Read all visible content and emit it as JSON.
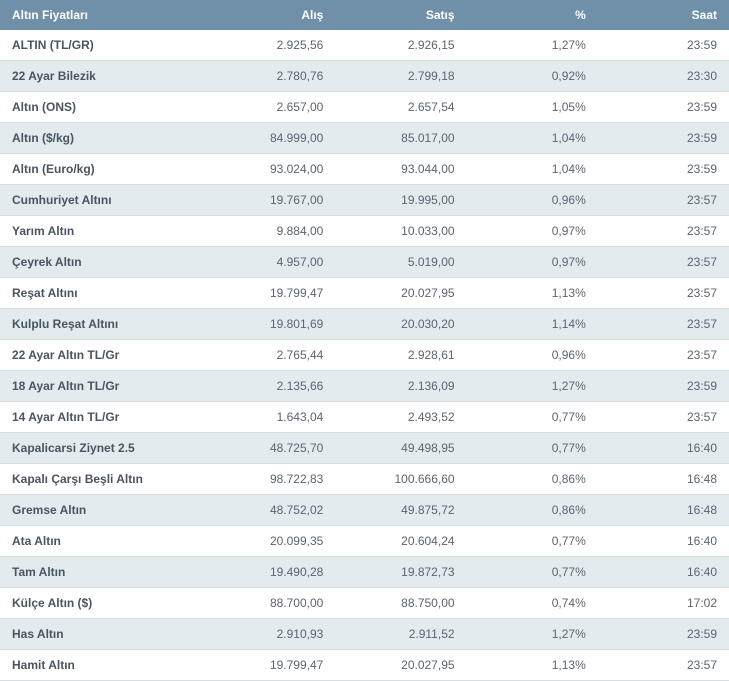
{
  "table": {
    "headers": {
      "name": "Altın Fiyatları",
      "buy": "Alış",
      "sell": "Satış",
      "pct": "%",
      "time": "Saat"
    },
    "rows": [
      {
        "name": "ALTIN (TL/GR)",
        "buy": "2.925,56",
        "sell": "2.926,15",
        "pct": "1,27%",
        "time": "23:59"
      },
      {
        "name": "22 Ayar Bilezik",
        "buy": "2.780,76",
        "sell": "2.799,18",
        "pct": "0,92%",
        "time": "23:30"
      },
      {
        "name": "Altın (ONS)",
        "buy": "2.657,00",
        "sell": "2.657,54",
        "pct": "1,05%",
        "time": "23:59"
      },
      {
        "name": "Altın ($/kg)",
        "buy": "84.999,00",
        "sell": "85.017,00",
        "pct": "1,04%",
        "time": "23:59"
      },
      {
        "name": "Altın (Euro/kg)",
        "buy": "93.024,00",
        "sell": "93.044,00",
        "pct": "1,04%",
        "time": "23:59"
      },
      {
        "name": "Cumhuriyet Altını",
        "buy": "19.767,00",
        "sell": "19.995,00",
        "pct": "0,96%",
        "time": "23:57"
      },
      {
        "name": "Yarım Altın",
        "buy": "9.884,00",
        "sell": "10.033,00",
        "pct": "0,97%",
        "time": "23:57"
      },
      {
        "name": "Çeyrek Altın",
        "buy": "4.957,00",
        "sell": "5.019,00",
        "pct": "0,97%",
        "time": "23:57"
      },
      {
        "name": "Reşat Altını",
        "buy": "19.799,47",
        "sell": "20.027,95",
        "pct": "1,13%",
        "time": "23:57"
      },
      {
        "name": "Kulplu Reşat Altını",
        "buy": "19.801,69",
        "sell": "20.030,20",
        "pct": "1,14%",
        "time": "23:57"
      },
      {
        "name": "22 Ayar Altın TL/Gr",
        "buy": "2.765,44",
        "sell": "2.928,61",
        "pct": "0,96%",
        "time": "23:57"
      },
      {
        "name": "18 Ayar Altın TL/Gr",
        "buy": "2.135,66",
        "sell": "2.136,09",
        "pct": "1,27%",
        "time": "23:59"
      },
      {
        "name": "14 Ayar Altın TL/Gr",
        "buy": "1.643,04",
        "sell": "2.493,52",
        "pct": "0,77%",
        "time": "23:57"
      },
      {
        "name": "Kapalicarsi Ziynet 2.5",
        "buy": "48.725,70",
        "sell": "49.498,95",
        "pct": "0,77%",
        "time": "16:40"
      },
      {
        "name": "Kapalı Çarşı Beşli Altın",
        "buy": "98.722,83",
        "sell": "100.666,60",
        "pct": "0,86%",
        "time": "16:48"
      },
      {
        "name": "Gremse Altın",
        "buy": "48.752,02",
        "sell": "49.875,72",
        "pct": "0,86%",
        "time": "16:48"
      },
      {
        "name": "Ata Altın",
        "buy": "20.099,35",
        "sell": "20.604,24",
        "pct": "0,77%",
        "time": "16:40"
      },
      {
        "name": "Tam Altın",
        "buy": "19.490,28",
        "sell": "19.872,73",
        "pct": "0,77%",
        "time": "16:40"
      },
      {
        "name": "Külçe Altın ($)",
        "buy": "88.700,00",
        "sell": "88.750,00",
        "pct": "0,74%",
        "time": "17:02"
      },
      {
        "name": "Has Altın",
        "buy": "2.910,93",
        "sell": "2.911,52",
        "pct": "1,27%",
        "time": "23:59"
      },
      {
        "name": "Hamit Altın",
        "buy": "19.799,47",
        "sell": "20.027,95",
        "pct": "1,13%",
        "time": "23:57"
      }
    ],
    "styling": {
      "type": "table",
      "header_bg": "#6f90a8",
      "header_text_color": "#ffffff",
      "row_odd_bg": "#ffffff",
      "row_even_bg": "#e3ebef",
      "border_color": "#d8dde0",
      "text_color": "#5a6570",
      "name_text_color": "#4a5560",
      "font_family": "Arial",
      "font_size": 12,
      "col_widths_pct": [
        28,
        18,
        18,
        18,
        18
      ],
      "col_align": [
        "left",
        "right",
        "right",
        "right",
        "right"
      ]
    }
  }
}
